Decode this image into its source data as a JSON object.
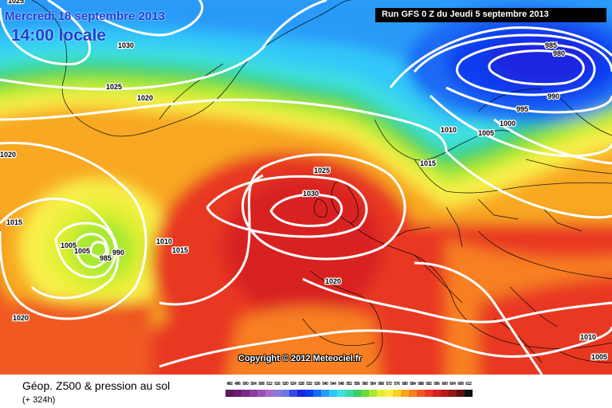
{
  "title_date": "Mercredi 18 septembre 2013",
  "title_time": "14:00 locale",
  "run_info": "Run GFS 0 Z du Jeudi 5 septembre 2013",
  "copyright": "Copyright © 2012 Meteociel.fr",
  "bottom_title": "Géop. Z500 & pression au sol",
  "bottom_subtitle": "(+ 324h)",
  "isobar_labels": [
    "1025",
    "1030",
    "1025",
    "1020",
    "1020",
    "1015",
    "1005",
    "1005",
    "985",
    "990",
    "1010",
    "1015",
    "1025",
    "1030",
    "1020",
    "1020",
    "985",
    "980",
    "990",
    "995",
    "1000",
    "1005",
    "1010",
    "1015",
    "1010",
    "1005"
  ],
  "colors": {
    "land_outline": "#000000",
    "isobar": "#ffffff",
    "title_blue": "#1f3fd0"
  },
  "scale": [
    {
      "label": "492",
      "color": "#5a1a5a"
    },
    {
      "label": "496",
      "color": "#6a1f6e"
    },
    {
      "label": "500",
      "color": "#7a2a8a"
    },
    {
      "label": "504",
      "color": "#8a3aa0"
    },
    {
      "label": "508",
      "color": "#9a50b8"
    },
    {
      "label": "512",
      "color": "#a868cc"
    },
    {
      "label": "516",
      "color": "#8a7ad8"
    },
    {
      "label": "520",
      "color": "#6a7ae0"
    },
    {
      "label": "524",
      "color": "#3a4ae8"
    },
    {
      "label": "528",
      "color": "#1a28e0"
    },
    {
      "label": "532",
      "color": "#0a3cf0"
    },
    {
      "label": "536",
      "color": "#1a6af5"
    },
    {
      "label": "540",
      "color": "#2a9af8"
    },
    {
      "label": "544",
      "color": "#30c8f8"
    },
    {
      "label": "548",
      "color": "#40e0e0"
    },
    {
      "label": "552",
      "color": "#40d8a8"
    },
    {
      "label": "556",
      "color": "#38d068"
    },
    {
      "label": "560",
      "color": "#68dc38"
    },
    {
      "label": "564",
      "color": "#a8e830"
    },
    {
      "label": "568",
      "color": "#e0f030"
    },
    {
      "label": "572",
      "color": "#f8f048"
    },
    {
      "label": "576",
      "color": "#fcd020"
    },
    {
      "label": "580",
      "color": "#f8a820"
    },
    {
      "label": "584",
      "color": "#f88020"
    },
    {
      "label": "588",
      "color": "#f05a20"
    },
    {
      "label": "592",
      "color": "#e83820"
    },
    {
      "label": "596",
      "color": "#d82020"
    },
    {
      "label": "600",
      "color": "#b81818"
    },
    {
      "label": "604",
      "color": "#901818"
    },
    {
      "label": "608",
      "color": "#601010"
    },
    {
      "label": "612",
      "color": "#101010"
    }
  ]
}
